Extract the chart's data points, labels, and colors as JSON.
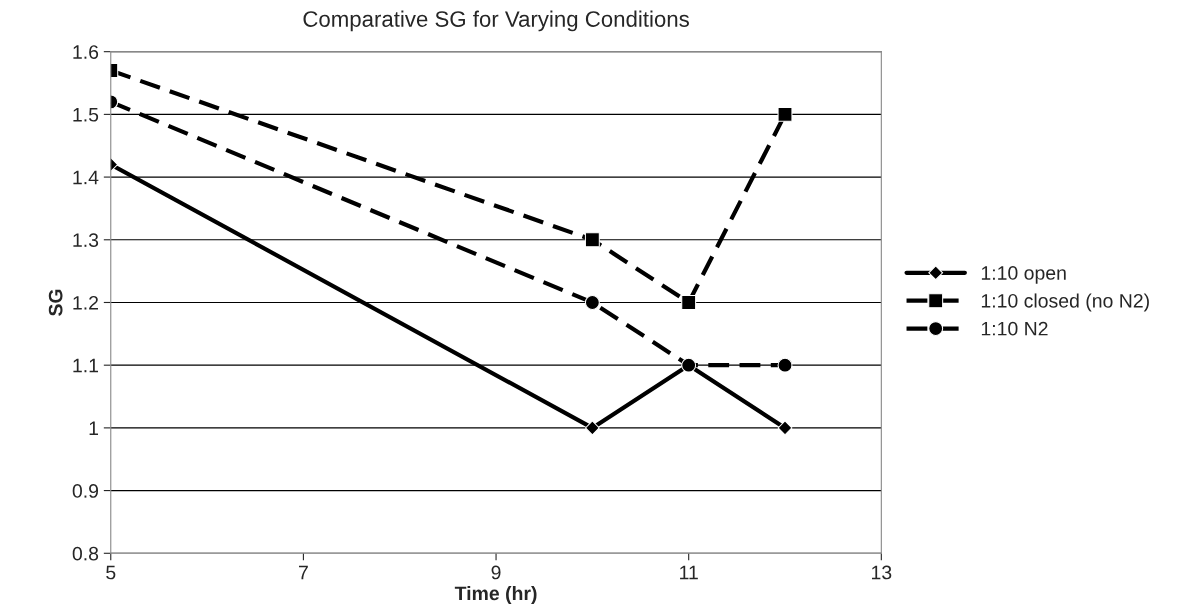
{
  "chart_data": {
    "type": "line",
    "title": "Comparative SG for Varying Conditions",
    "xlabel": "Time (hr)",
    "ylabel": "SG",
    "x": [
      5,
      10,
      11,
      12
    ],
    "series": [
      {
        "name": "1:10 open",
        "color": "#000000",
        "values": [
          1.42,
          1.0,
          1.1,
          1.0
        ],
        "marker": "diamond",
        "line_style": "solid"
      },
      {
        "name": "1:10 closed (no N2)",
        "color": "#000000",
        "values": [
          1.57,
          1.3,
          1.2,
          1.5
        ],
        "marker": "square",
        "line_style": "dashed"
      },
      {
        "name": "1:10 N2",
        "color": "#000000",
        "values": [
          1.52,
          1.2,
          1.1,
          1.1
        ],
        "marker": "circle",
        "line_style": "dashed"
      }
    ],
    "xlim": [
      5,
      13
    ],
    "xticks": [
      5,
      7,
      9,
      11,
      13
    ],
    "ylim": [
      0.8,
      1.6
    ],
    "yticks": [
      0.8,
      0.9,
      1,
      1.1,
      1.2,
      1.3,
      1.4,
      1.5,
      1.6
    ],
    "grid": "y",
    "legend": "right"
  }
}
